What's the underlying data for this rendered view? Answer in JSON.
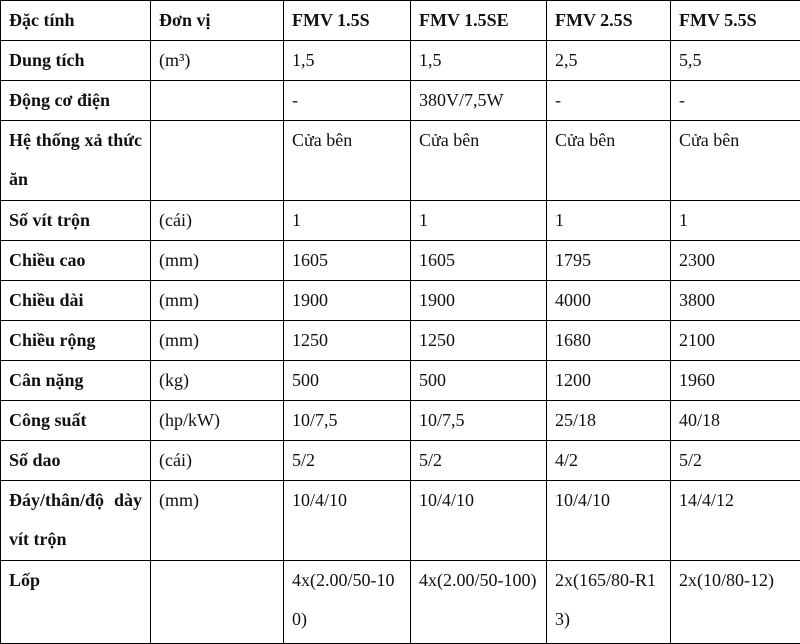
{
  "table": {
    "header": [
      "Đặc tính",
      "Đơn vị",
      "FMV 1.5S",
      "FMV 1.5SE",
      "FMV 2.5S",
      "FMV 5.5S"
    ],
    "rows": [
      [
        "Dung tích",
        "(m³)",
        "1,5",
        "1,5",
        "2,5",
        "5,5"
      ],
      [
        "Động cơ điện",
        null,
        "-",
        "380V/7,5W",
        "-",
        "-"
      ],
      [
        "Hệ thống xả thức ăn",
        null,
        "Cửa bên",
        "Cửa bên",
        "Cửa bên",
        "Cửa bên"
      ],
      [
        "Số vít trộn",
        "(cái)",
        "1",
        "1",
        "1",
        "1"
      ],
      [
        "Chiều cao",
        "(mm)",
        "1605",
        "1605",
        "1795",
        "2300"
      ],
      [
        "Chiều dài",
        "(mm)",
        "1900",
        "1900",
        "4000",
        "3800"
      ],
      [
        "Chiều rộng",
        "(mm)",
        "1250",
        "1250",
        "1680",
        "2100"
      ],
      [
        "Cân nặng",
        "(kg)",
        "500",
        "500",
        "1200",
        "1960"
      ],
      [
        "Công suất",
        "(hp/kW)",
        "10/7,5",
        "10/7,5",
        "25/18",
        "40/18"
      ],
      [
        "Số dao",
        "(cái)",
        "5/2",
        "5/2",
        "4/2",
        "5/2"
      ],
      [
        "Đáy/thân/độ dày vít trộn",
        "(mm)",
        "10/4/10",
        "10/4/10",
        "10/4/10",
        "14/4/12"
      ],
      [
        "Lốp",
        null,
        "4x(2.00/50-100)",
        "4x(2.00/50-100)",
        "2x(165/80-R13)",
        "2x(10/80-12)"
      ]
    ]
  }
}
